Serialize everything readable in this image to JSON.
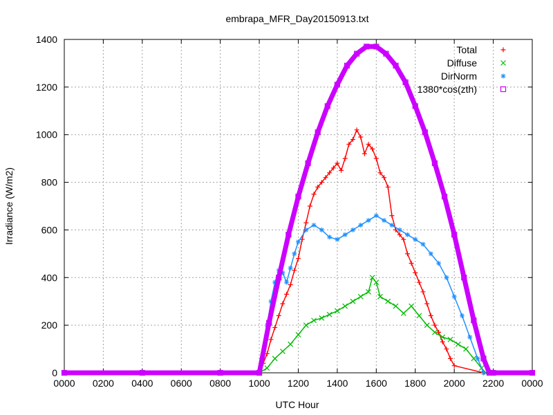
{
  "chart_data": {
    "type": "scatter",
    "title": "embrapa_MFR_Day20150913.txt",
    "xlabel": "UTC Hour",
    "ylabel": "Irradiance (W/m2)",
    "xlim": [
      0,
      24
    ],
    "ylim": [
      0,
      1400
    ],
    "x_ticks": [
      {
        "value": 0,
        "label": "0000"
      },
      {
        "value": 2,
        "label": "0200"
      },
      {
        "value": 4,
        "label": "0400"
      },
      {
        "value": 6,
        "label": "0600"
      },
      {
        "value": 8,
        "label": "0800"
      },
      {
        "value": 10,
        "label": "1000"
      },
      {
        "value": 12,
        "label": "1200"
      },
      {
        "value": 14,
        "label": "1400"
      },
      {
        "value": 16,
        "label": "1600"
      },
      {
        "value": 18,
        "label": "1800"
      },
      {
        "value": 20,
        "label": "2000"
      },
      {
        "value": 22,
        "label": "2200"
      },
      {
        "value": 24,
        "label": "0000"
      }
    ],
    "y_ticks": [
      0,
      200,
      400,
      600,
      800,
      1000,
      1200,
      1400
    ],
    "grid": true,
    "legend_position": "top-right",
    "series": [
      {
        "name": "Total",
        "marker": "+",
        "color": "#ff0000",
        "points": [
          [
            10.0,
            0
          ],
          [
            10.2,
            40
          ],
          [
            10.4,
            80
          ],
          [
            10.6,
            140
          ],
          [
            10.8,
            190
          ],
          [
            11.0,
            240
          ],
          [
            11.2,
            290
          ],
          [
            11.4,
            330
          ],
          [
            11.6,
            370
          ],
          [
            11.8,
            430
          ],
          [
            12.0,
            480
          ],
          [
            12.2,
            560
          ],
          [
            12.4,
            630
          ],
          [
            12.6,
            700
          ],
          [
            12.8,
            750
          ],
          [
            13.0,
            780
          ],
          [
            13.2,
            800
          ],
          [
            13.4,
            820
          ],
          [
            13.6,
            840
          ],
          [
            13.8,
            860
          ],
          [
            14.0,
            880
          ],
          [
            14.2,
            850
          ],
          [
            14.4,
            900
          ],
          [
            14.6,
            960
          ],
          [
            14.8,
            980
          ],
          [
            15.0,
            1020
          ],
          [
            15.2,
            990
          ],
          [
            15.4,
            920
          ],
          [
            15.6,
            960
          ],
          [
            15.8,
            940
          ],
          [
            16.0,
            900
          ],
          [
            16.2,
            840
          ],
          [
            16.4,
            820
          ],
          [
            16.6,
            780
          ],
          [
            16.8,
            660
          ],
          [
            17.0,
            600
          ],
          [
            17.2,
            580
          ],
          [
            17.4,
            560
          ],
          [
            17.6,
            500
          ],
          [
            17.8,
            460
          ],
          [
            18.0,
            420
          ],
          [
            18.2,
            380
          ],
          [
            18.4,
            340
          ],
          [
            18.6,
            290
          ],
          [
            18.8,
            240
          ],
          [
            19.0,
            200
          ],
          [
            19.2,
            170
          ],
          [
            19.4,
            130
          ],
          [
            19.6,
            100
          ],
          [
            19.8,
            60
          ],
          [
            20.0,
            30
          ],
          [
            21.5,
            0
          ]
        ]
      },
      {
        "name": "Diffuse",
        "marker": "x",
        "color": "#00bb00",
        "points": [
          [
            10.0,
            0
          ],
          [
            10.4,
            20
          ],
          [
            10.8,
            60
          ],
          [
            11.2,
            90
          ],
          [
            11.6,
            120
          ],
          [
            12.0,
            160
          ],
          [
            12.4,
            200
          ],
          [
            12.8,
            220
          ],
          [
            13.2,
            230
          ],
          [
            13.6,
            245
          ],
          [
            14.0,
            260
          ],
          [
            14.4,
            280
          ],
          [
            14.8,
            300
          ],
          [
            15.2,
            320
          ],
          [
            15.6,
            340
          ],
          [
            15.8,
            400
          ],
          [
            16.0,
            380
          ],
          [
            16.2,
            320
          ],
          [
            16.6,
            300
          ],
          [
            17.0,
            280
          ],
          [
            17.4,
            250
          ],
          [
            17.8,
            280
          ],
          [
            18.2,
            240
          ],
          [
            18.6,
            200
          ],
          [
            19.0,
            170
          ],
          [
            19.4,
            150
          ],
          [
            19.8,
            140
          ],
          [
            20.2,
            120
          ],
          [
            20.6,
            100
          ],
          [
            21.0,
            60
          ],
          [
            21.4,
            20
          ],
          [
            21.6,
            0
          ]
        ]
      },
      {
        "name": "DirNorm",
        "marker": "*",
        "color": "#1e90ff",
        "points": [
          [
            10.0,
            0
          ],
          [
            10.2,
            80
          ],
          [
            10.4,
            200
          ],
          [
            10.6,
            300
          ],
          [
            10.8,
            380
          ],
          [
            11.0,
            430
          ],
          [
            11.2,
            420
          ],
          [
            11.4,
            380
          ],
          [
            11.6,
            440
          ],
          [
            11.8,
            500
          ],
          [
            12.0,
            550
          ],
          [
            12.4,
            600
          ],
          [
            12.8,
            620
          ],
          [
            13.2,
            600
          ],
          [
            13.6,
            570
          ],
          [
            14.0,
            560
          ],
          [
            14.4,
            580
          ],
          [
            14.8,
            600
          ],
          [
            15.2,
            620
          ],
          [
            15.6,
            640
          ],
          [
            16.0,
            660
          ],
          [
            16.4,
            640
          ],
          [
            16.8,
            620
          ],
          [
            17.2,
            600
          ],
          [
            17.6,
            580
          ],
          [
            18.0,
            560
          ],
          [
            18.4,
            540
          ],
          [
            18.8,
            500
          ],
          [
            19.2,
            460
          ],
          [
            19.6,
            400
          ],
          [
            20.0,
            320
          ],
          [
            20.4,
            240
          ],
          [
            20.8,
            150
          ],
          [
            21.2,
            60
          ],
          [
            21.5,
            0
          ]
        ]
      },
      {
        "name": "1380*cos(zth)",
        "marker": "□",
        "color": "#cc00ff",
        "points": [
          [
            0,
            0
          ],
          [
            4,
            0
          ],
          [
            8,
            0
          ],
          [
            10.0,
            0
          ],
          [
            10.5,
            210
          ],
          [
            11.0,
            400
          ],
          [
            11.5,
            580
          ],
          [
            12.0,
            740
          ],
          [
            12.5,
            880
          ],
          [
            13.0,
            1010
          ],
          [
            13.5,
            1120
          ],
          [
            14.0,
            1210
          ],
          [
            14.5,
            1290
          ],
          [
            15.0,
            1340
          ],
          [
            15.5,
            1370
          ],
          [
            16.0,
            1370
          ],
          [
            16.5,
            1340
          ],
          [
            17.0,
            1290
          ],
          [
            17.5,
            1220
          ],
          [
            18.0,
            1120
          ],
          [
            18.5,
            1010
          ],
          [
            19.0,
            880
          ],
          [
            19.5,
            740
          ],
          [
            20.0,
            580
          ],
          [
            20.5,
            400
          ],
          [
            21.0,
            220
          ],
          [
            21.5,
            60
          ],
          [
            21.8,
            0
          ],
          [
            22.0,
            0
          ],
          [
            24,
            0
          ]
        ]
      }
    ]
  }
}
